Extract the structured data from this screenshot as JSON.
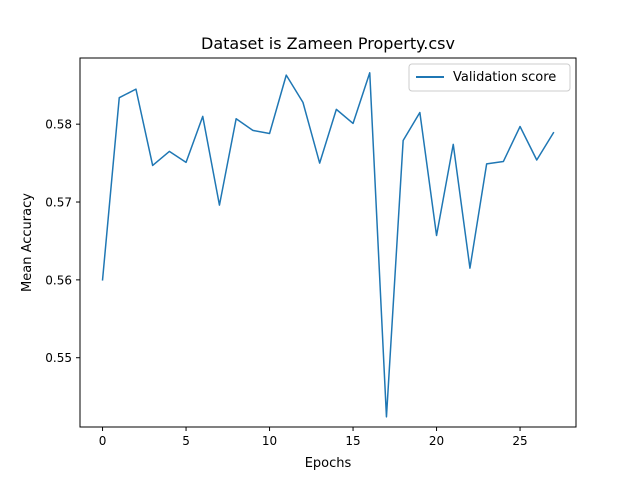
{
  "chart_data": {
    "type": "line",
    "title": "Dataset is Zameen Property.csv",
    "xlabel": "Epochs",
    "ylabel": "Mean Accuracy",
    "xlim": [
      -1.35,
      28.35
    ],
    "ylim": [
      0.5411,
      0.5885
    ],
    "x_ticks": [
      0,
      5,
      10,
      15,
      20,
      25
    ],
    "x_tick_labels": [
      "0",
      "5",
      "10",
      "15",
      "20",
      "25"
    ],
    "y_ticks": [
      0.55,
      0.56,
      0.57,
      0.58
    ],
    "y_tick_labels": [
      "0.55",
      "0.56",
      "0.57",
      "0.58"
    ],
    "grid": false,
    "legend_position": "top-right",
    "series": [
      {
        "name": "Validation score",
        "color": "#1f77b4",
        "x": [
          0,
          1,
          2,
          3,
          4,
          5,
          6,
          7,
          8,
          9,
          10,
          11,
          12,
          13,
          14,
          15,
          16,
          17,
          18,
          19,
          20,
          21,
          22,
          23,
          24,
          25,
          26,
          27
        ],
        "values": [
          0.56,
          0.5834,
          0.5845,
          0.5747,
          0.5765,
          0.5751,
          0.581,
          0.5696,
          0.5807,
          0.5792,
          0.5788,
          0.5863,
          0.5828,
          0.575,
          0.5819,
          0.5801,
          0.5866,
          0.5424,
          0.5779,
          0.5815,
          0.5657,
          0.5774,
          0.5615,
          0.5749,
          0.5752,
          0.5797,
          0.5754,
          0.5789
        ]
      }
    ]
  }
}
